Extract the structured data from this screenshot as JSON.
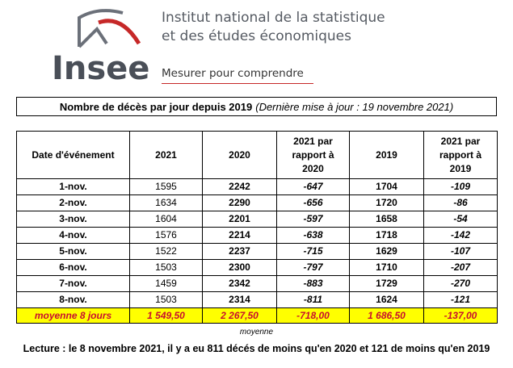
{
  "header": {
    "logo_text": "Insee",
    "institute_line1": "Institut national de la statistique",
    "institute_line2": "et des études économiques",
    "tagline": "Mesurer pour comprendre",
    "brand_red": "#c62828",
    "brand_grey": "#4a4f58"
  },
  "title": {
    "main": "Nombre de décès par jour depuis 2019",
    "note": "(Dernière mise à jour : 19 novembre 2021)"
  },
  "table": {
    "headers": [
      "Date d'événement",
      "2021",
      "2020",
      "2021 par rapport à 2020",
      "2019",
      "2021 par rapport à 2019"
    ],
    "rows": [
      [
        "1-nov.",
        "1595",
        "2242",
        "-647",
        "1704",
        "-109"
      ],
      [
        "2-nov.",
        "1634",
        "2290",
        "-656",
        "1720",
        "-86"
      ],
      [
        "3-nov.",
        "1604",
        "2201",
        "-597",
        "1658",
        "-54"
      ],
      [
        "4-nov.",
        "1576",
        "2214",
        "-638",
        "1718",
        "-142"
      ],
      [
        "5-nov.",
        "1522",
        "2237",
        "-715",
        "1629",
        "-107"
      ],
      [
        "6-nov.",
        "1503",
        "2300",
        "-797",
        "1710",
        "-207"
      ],
      [
        "7-nov.",
        "1459",
        "2342",
        "-883",
        "1729",
        "-270"
      ],
      [
        "8-nov.",
        "1503",
        "2314",
        "-811",
        "1624",
        "-121"
      ]
    ],
    "average": [
      "moyenne 8 jours",
      "1 549,50",
      "2 267,50",
      "-718,00",
      "1 686,50",
      "-137,00"
    ],
    "highlight_color": "#ffff00",
    "average_text_color": "#c8102e"
  },
  "footnote": "moyenne",
  "reading": "Lecture : le 8 novembre 2021, il y a eu 811 décés de moins qu'en 2020 et 121 de moins qu'en 2019"
}
